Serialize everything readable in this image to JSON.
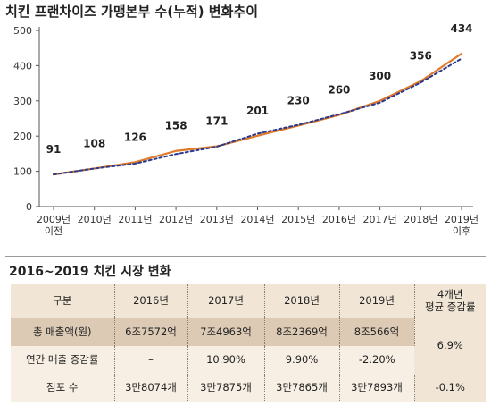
{
  "chart_data": {
    "type": "line",
    "title": "치킨 프랜차이즈 가맹본부 수(누적) 변화추이",
    "categories": [
      [
        "2009년",
        "이전"
      ],
      [
        "2010년"
      ],
      [
        "2011년"
      ],
      [
        "2012년"
      ],
      [
        "2013년"
      ],
      [
        "2014년"
      ],
      [
        "2015년"
      ],
      [
        "2016년"
      ],
      [
        "2017년"
      ],
      [
        "2018년"
      ],
      [
        "2019년",
        "이후"
      ]
    ],
    "series": [
      {
        "values": [
          91,
          108,
          126,
          158,
          171,
          201,
          230,
          260,
          300,
          356,
          434
        ],
        "color": "#e07a2a",
        "style": "solid"
      },
      {
        "values": [
          91,
          108,
          122,
          149,
          170,
          207,
          232,
          262,
          295,
          352,
          420
        ],
        "color": "#2b3a8c",
        "style": "dotted"
      }
    ],
    "data_labels": [
      91,
      108,
      126,
      158,
      171,
      201,
      230,
      260,
      300,
      356,
      434
    ],
    "yticks": [
      0,
      100,
      200,
      300,
      400,
      500
    ],
    "ylim": [
      0,
      500
    ],
    "grid": false,
    "legend": "none",
    "xlabel": "",
    "ylabel": ""
  },
  "table": {
    "title": "2016~2019 치킨 시장 변화",
    "headers": [
      "구분",
      "2016년",
      "2017년",
      "2018년",
      "2019년",
      [
        "4개년",
        "평균 증감률"
      ]
    ],
    "rows": [
      {
        "label": "총 매출액(원)",
        "cells": [
          "6조7572억",
          "7조4963억",
          "8조2369억",
          "8조566억"
        ]
      },
      {
        "label": "연간 매출 증감률",
        "cells": [
          "–",
          "10.90%",
          "9.90%",
          "-2.20%"
        ]
      },
      {
        "label": "점포 수",
        "cells": [
          "3만8074개",
          "3만7875개",
          "3만7865개",
          "3만7893개"
        ],
        "avg": "-0.1%"
      }
    ],
    "avg_sales": "6.9%"
  },
  "colors": {
    "accent": "#e07a2a",
    "dotted_line": "#2b3a8c",
    "table_header": "#f1e6d6",
    "table_highlight": "#dccab4",
    "table_cell": "#f7efe3"
  }
}
